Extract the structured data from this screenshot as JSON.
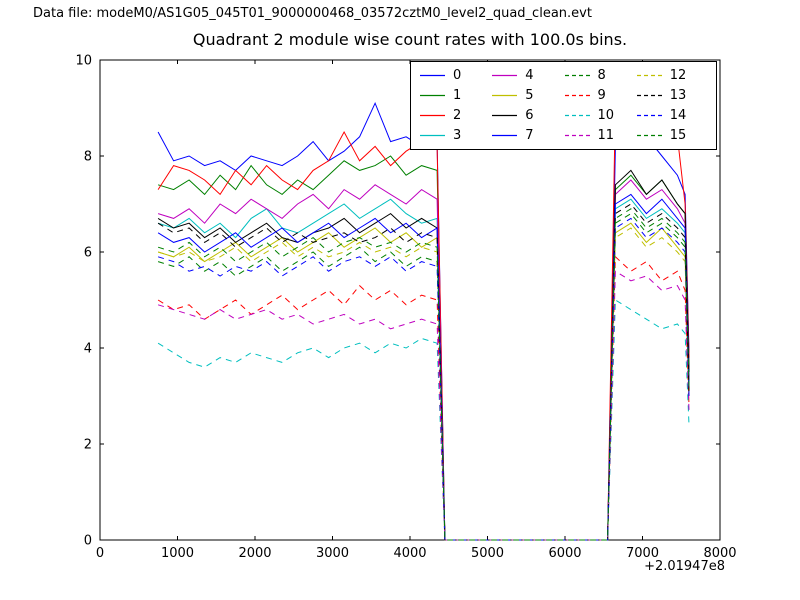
{
  "header": {
    "text": "Data file: modeM0/AS1G05_045T01_9000000468_03572cztM0_level2_quad_clean.evt"
  },
  "chart_data": {
    "type": "line",
    "title": "Quadrant 2 module wise count rates with 100.0s bins.",
    "xlabel": "",
    "ylabel": "",
    "xlim": [
      0,
      8000
    ],
    "ylim": [
      0,
      10
    ],
    "xticks": [
      0,
      1000,
      2000,
      3000,
      4000,
      5000,
      6000,
      7000,
      8000
    ],
    "yticks": [
      0,
      2,
      4,
      6,
      8,
      10
    ],
    "x_offset_label": "+2.01947e8",
    "grid": false,
    "legend_position": "upper right inside, 4 columns",
    "x": [
      750,
      950,
      1150,
      1350,
      1550,
      1750,
      1950,
      2150,
      2350,
      2550,
      2750,
      2950,
      3150,
      3350,
      3550,
      3750,
      3950,
      4150,
      4350,
      4450,
      4650,
      5000,
      5400,
      5800,
      6200,
      6550,
      6650,
      6850,
      7050,
      7250,
      7450,
      7550,
      7600
    ],
    "series": [
      {
        "name": "0",
        "color": "#0000ff",
        "linestyle": "solid",
        "values": [
          8.5,
          7.9,
          8.0,
          7.8,
          7.9,
          7.7,
          8.0,
          7.9,
          7.8,
          8.0,
          8.3,
          7.9,
          8.1,
          8.4,
          9.1,
          8.3,
          8.4,
          8.2,
          8.3,
          0,
          0,
          0,
          0,
          0,
          0,
          0,
          8.2,
          8.9,
          8.4,
          8.0,
          7.6,
          7.2,
          3.9
        ]
      },
      {
        "name": "1",
        "color": "#008000",
        "linestyle": "solid",
        "values": [
          7.4,
          7.3,
          7.5,
          7.2,
          7.6,
          7.3,
          7.8,
          7.4,
          7.2,
          7.5,
          7.3,
          7.6,
          7.9,
          7.7,
          7.8,
          8.0,
          7.6,
          7.8,
          7.7,
          0,
          0,
          0,
          0,
          0,
          0,
          0,
          7.3,
          7.6,
          7.2,
          7.5,
          7.0,
          6.8,
          3.6
        ]
      },
      {
        "name": "2",
        "color": "#ff0000",
        "linestyle": "solid",
        "values": [
          7.3,
          7.8,
          7.7,
          7.5,
          7.2,
          7.7,
          7.4,
          7.8,
          7.5,
          7.3,
          7.7,
          7.9,
          8.5,
          7.9,
          8.2,
          7.8,
          8.1,
          8.3,
          8.2,
          0,
          0,
          0,
          0,
          0,
          0,
          0,
          9.1,
          8.3,
          8.8,
          8.2,
          8.4,
          7.0,
          3.8
        ]
      },
      {
        "name": "3",
        "color": "#00bfbf",
        "linestyle": "solid",
        "values": [
          6.6,
          6.5,
          6.7,
          6.4,
          6.6,
          6.3,
          6.7,
          6.9,
          6.5,
          6.4,
          6.6,
          6.8,
          7.0,
          6.7,
          6.9,
          7.1,
          6.8,
          6.6,
          6.7,
          0,
          0,
          0,
          0,
          0,
          0,
          0,
          6.9,
          7.1,
          6.7,
          6.9,
          6.6,
          6.4,
          3.3
        ]
      },
      {
        "name": "4",
        "color": "#bf00bf",
        "linestyle": "solid",
        "values": [
          6.8,
          6.7,
          6.9,
          6.6,
          7.0,
          6.8,
          7.1,
          6.9,
          6.7,
          7.0,
          7.2,
          6.9,
          7.3,
          7.1,
          7.4,
          7.2,
          7.0,
          7.3,
          7.1,
          0,
          0,
          0,
          0,
          0,
          0,
          0,
          7.2,
          7.5,
          7.1,
          7.3,
          6.9,
          6.6,
          3.4
        ]
      },
      {
        "name": "5",
        "color": "#bfbf00",
        "linestyle": "solid",
        "values": [
          6.0,
          5.9,
          6.1,
          5.8,
          6.0,
          6.2,
          5.9,
          6.1,
          6.3,
          6.0,
          6.2,
          6.4,
          6.1,
          6.3,
          6.5,
          6.2,
          6.4,
          6.1,
          6.3,
          0,
          0,
          0,
          0,
          0,
          0,
          0,
          6.4,
          6.6,
          6.2,
          6.5,
          6.1,
          5.9,
          3.0
        ]
      },
      {
        "name": "6",
        "color": "#000000",
        "linestyle": "solid",
        "values": [
          6.7,
          6.5,
          6.6,
          6.3,
          6.5,
          6.2,
          6.4,
          6.6,
          6.3,
          6.2,
          6.4,
          6.5,
          6.7,
          6.4,
          6.6,
          6.8,
          6.5,
          6.7,
          6.5,
          0,
          0,
          0,
          0,
          0,
          0,
          0,
          7.4,
          7.7,
          7.2,
          7.5,
          7.0,
          6.8,
          3.5
        ]
      },
      {
        "name": "7",
        "color": "#0000ff",
        "linestyle": "solid",
        "values": [
          6.4,
          6.2,
          6.3,
          6.0,
          6.2,
          6.4,
          6.1,
          6.3,
          6.5,
          6.2,
          6.4,
          6.6,
          6.3,
          6.5,
          6.7,
          6.4,
          6.6,
          6.3,
          6.5,
          0,
          0,
          0,
          0,
          0,
          0,
          0,
          7.0,
          7.2,
          6.8,
          7.1,
          6.7,
          6.5,
          3.2
        ]
      },
      {
        "name": "8",
        "color": "#008000",
        "linestyle": "dashed",
        "values": [
          5.8,
          5.7,
          5.9,
          5.6,
          5.8,
          5.5,
          5.7,
          5.9,
          5.6,
          5.8,
          6.0,
          5.7,
          5.9,
          6.1,
          5.8,
          6.0,
          5.7,
          5.9,
          5.8,
          0,
          0,
          0,
          0,
          0,
          0,
          0,
          6.6,
          6.8,
          6.4,
          6.6,
          6.3,
          6.1,
          3.1
        ]
      },
      {
        "name": "9",
        "color": "#ff0000",
        "linestyle": "dashed",
        "values": [
          5.0,
          4.8,
          4.9,
          4.6,
          4.8,
          5.0,
          4.7,
          4.9,
          5.1,
          4.8,
          5.0,
          5.2,
          4.9,
          5.3,
          5.0,
          5.2,
          4.9,
          5.1,
          5.0,
          0,
          0,
          0,
          0,
          0,
          0,
          0,
          5.9,
          5.6,
          5.8,
          5.4,
          5.6,
          5.2,
          2.8
        ]
      },
      {
        "name": "10",
        "color": "#00bfbf",
        "linestyle": "dashed",
        "values": [
          4.1,
          3.9,
          3.7,
          3.6,
          3.8,
          3.7,
          3.9,
          3.8,
          3.7,
          3.9,
          4.0,
          3.8,
          4.0,
          4.1,
          3.9,
          4.1,
          4.0,
          4.2,
          4.1,
          0,
          0,
          0,
          0,
          0,
          0,
          0,
          5.0,
          4.8,
          4.6,
          4.4,
          4.5,
          4.3,
          2.4
        ]
      },
      {
        "name": "11",
        "color": "#bf00bf",
        "linestyle": "dashed",
        "values": [
          4.9,
          4.8,
          4.7,
          4.6,
          4.8,
          4.6,
          4.7,
          4.8,
          4.6,
          4.7,
          4.5,
          4.6,
          4.7,
          4.5,
          4.6,
          4.4,
          4.5,
          4.6,
          4.5,
          0,
          0,
          0,
          0,
          0,
          0,
          0,
          5.6,
          5.4,
          5.5,
          5.2,
          5.3,
          5.0,
          2.7
        ]
      },
      {
        "name": "12",
        "color": "#bfbf00",
        "linestyle": "dashed",
        "values": [
          6.0,
          5.9,
          6.0,
          5.8,
          5.9,
          6.1,
          5.8,
          6.0,
          6.2,
          5.9,
          6.1,
          5.9,
          6.0,
          6.2,
          6.0,
          6.1,
          5.9,
          6.1,
          6.0,
          0,
          0,
          0,
          0,
          0,
          0,
          0,
          6.3,
          6.5,
          6.1,
          6.3,
          6.0,
          5.8,
          2.9
        ]
      },
      {
        "name": "13",
        "color": "#000000",
        "linestyle": "dashed",
        "values": [
          6.6,
          6.4,
          6.5,
          6.2,
          6.4,
          6.1,
          6.3,
          6.5,
          6.2,
          6.4,
          6.2,
          6.3,
          6.4,
          6.2,
          6.3,
          6.5,
          6.2,
          6.4,
          6.3,
          0,
          0,
          0,
          0,
          0,
          0,
          0,
          6.8,
          7.0,
          6.6,
          6.8,
          6.5,
          6.3,
          3.1
        ]
      },
      {
        "name": "14",
        "color": "#0000ff",
        "linestyle": "dashed",
        "values": [
          5.9,
          5.8,
          5.6,
          5.7,
          5.5,
          5.7,
          5.6,
          5.8,
          5.5,
          5.7,
          5.9,
          5.6,
          5.8,
          5.9,
          5.7,
          5.9,
          5.6,
          5.8,
          5.7,
          0,
          0,
          0,
          0,
          0,
          0,
          0,
          6.5,
          6.7,
          6.3,
          6.5,
          6.2,
          6.0,
          3.0
        ]
      },
      {
        "name": "15",
        "color": "#008000",
        "linestyle": "dashed",
        "values": [
          6.1,
          6.0,
          6.2,
          5.9,
          6.1,
          5.8,
          6.0,
          6.2,
          5.9,
          6.1,
          6.3,
          6.0,
          6.2,
          6.3,
          6.1,
          6.2,
          6.0,
          6.2,
          6.1,
          0,
          0,
          0,
          0,
          0,
          0,
          0,
          6.7,
          6.9,
          6.5,
          6.7,
          6.4,
          6.2,
          3.2
        ]
      }
    ]
  }
}
